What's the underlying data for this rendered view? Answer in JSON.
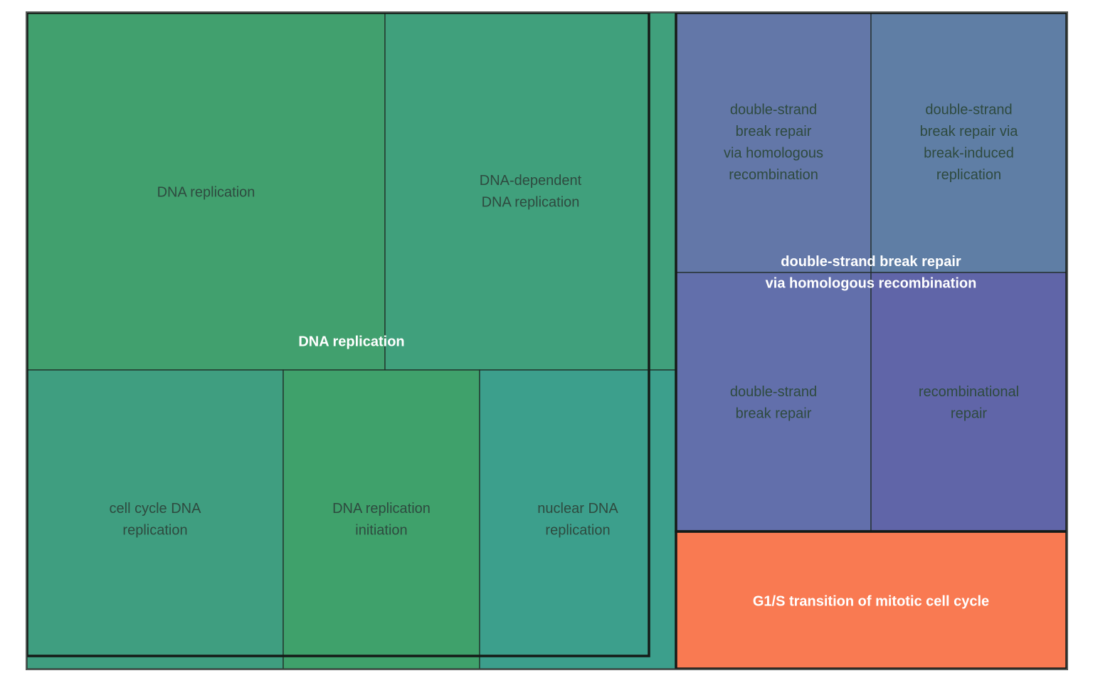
{
  "chart_data": {
    "type": "treemap",
    "groups": [
      {
        "name": "DNA replication",
        "color": "#3e9b6f",
        "children": [
          {
            "label": "DNA replication",
            "color": "#41a06e"
          },
          {
            "label": "DNA-dependent DNA replication",
            "color": "#40a07c"
          },
          {
            "label": "cell cycle DNA replication",
            "color": "#3f9e80"
          },
          {
            "label": "DNA replication initiation",
            "color": "#3fa16b"
          },
          {
            "label": "nuclear DNA replication",
            "color": "#3c9f8c"
          }
        ]
      },
      {
        "name": "double-strand break repair via homologous recombination",
        "color": "#6272aa",
        "children": [
          {
            "label": "double-strand break repair via homologous recombination",
            "color": "#6377a8"
          },
          {
            "label": "double-strand break repair via break-induced replication",
            "color": "#5f7ea5"
          },
          {
            "label": "double-strand break repair",
            "color": "#626fab"
          },
          {
            "label": "recombinational repair",
            "color": "#6065a8"
          }
        ]
      },
      {
        "name": "G1/S transition of mitotic cell cycle",
        "color": "#f97a52",
        "children": []
      }
    ]
  }
}
